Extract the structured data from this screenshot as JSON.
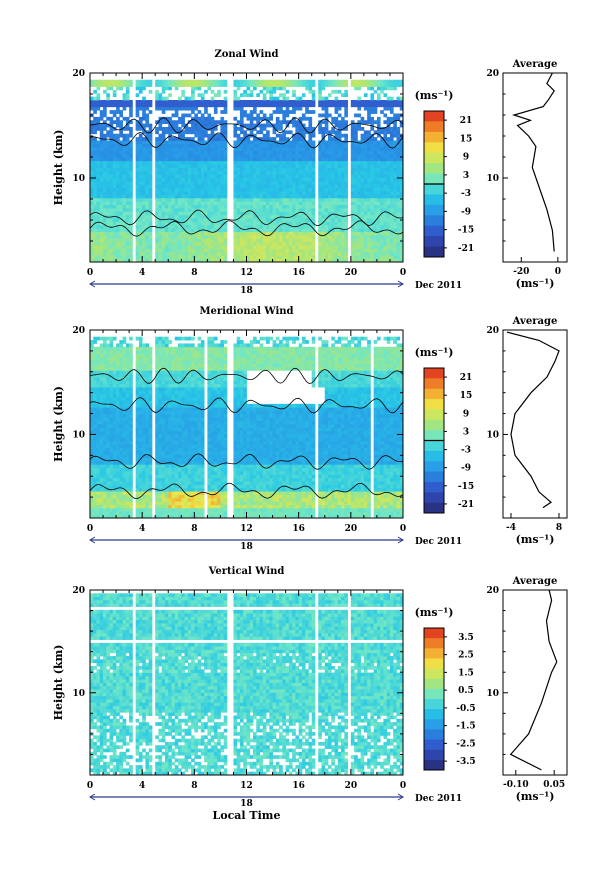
{
  "chart_data": [
    {
      "type": "heatmap",
      "title": "Zonal Wind",
      "ylabel": "Height (km)",
      "xlim": [
        0,
        24
      ],
      "ylim": [
        2,
        20
      ],
      "xticks": [
        "0",
        "4",
        "8",
        "12",
        "16",
        "20",
        "0"
      ],
      "yticks": [
        "10",
        "20"
      ],
      "date_label": "18",
      "date_suffix": "Dec 2011",
      "colorbar": {
        "unit": "(ms⁻¹)",
        "ticks": [
          "21",
          "15",
          "9",
          "3",
          "-3",
          "-9",
          "-15",
          "-21"
        ],
        "contour_level": 0
      },
      "average": {
        "title": "Average",
        "xlabel": "(ms⁻¹)",
        "xticks": [
          "-20",
          "0"
        ],
        "yticks": [
          "10",
          "20"
        ],
        "xlim": [
          -30,
          5
        ],
        "profile": [
          [
            -2,
            3
          ],
          [
            -3,
            5
          ],
          [
            -6,
            7
          ],
          [
            -10,
            9
          ],
          [
            -14,
            11
          ],
          [
            -13,
            12
          ],
          [
            -12,
            13
          ],
          [
            -16,
            14
          ],
          [
            -22,
            15
          ],
          [
            -15,
            15.5
          ],
          [
            -24,
            16
          ],
          [
            -8,
            16.8
          ],
          [
            -5,
            17.5
          ],
          [
            -2,
            18.3
          ],
          [
            -6,
            19
          ],
          [
            -3,
            20
          ]
        ]
      },
      "data_gaps": [
        [
          3.2,
          3.6
        ],
        [
          4.8,
          5.1
        ],
        [
          5.4,
          5.6
        ],
        [
          10.4,
          10.9
        ],
        [
          17.3,
          17.5
        ],
        [
          19.8,
          20.0
        ],
        [
          23.9,
          24
        ]
      ]
    },
    {
      "type": "heatmap",
      "title": "Meridional Wind",
      "ylabel": "Height (km)",
      "xlim": [
        0,
        24
      ],
      "ylim": [
        2,
        20
      ],
      "xticks": [
        "0",
        "4",
        "8",
        "12",
        "16",
        "20",
        "0"
      ],
      "yticks": [
        "10",
        "20"
      ],
      "date_label": "18",
      "date_suffix": "Dec 2011",
      "colorbar": {
        "unit": "(ms⁻¹)",
        "ticks": [
          "21",
          "15",
          "9",
          "3",
          "-3",
          "-9",
          "-15",
          "-21"
        ],
        "contour_level": 0
      },
      "average": {
        "title": "Average",
        "xlabel": "(ms⁻¹)",
        "xticks": [
          "-4",
          "8"
        ],
        "yticks": [
          "10",
          "20"
        ],
        "xlim": [
          -6,
          10
        ],
        "profile": [
          [
            4,
            3
          ],
          [
            6,
            3.5
          ],
          [
            3,
            4.5
          ],
          [
            1,
            6
          ],
          [
            -3,
            8
          ],
          [
            -4,
            10
          ],
          [
            -3,
            12
          ],
          [
            1,
            14
          ],
          [
            5,
            15.5
          ],
          [
            7,
            17
          ],
          [
            8,
            18
          ],
          [
            3,
            19
          ],
          [
            -5,
            19.8
          ]
        ]
      },
      "data_gaps": [
        [
          3.2,
          3.6
        ],
        [
          4.8,
          5.1
        ],
        [
          5.4,
          5.6
        ],
        [
          8.8,
          9.0
        ],
        [
          10.4,
          10.9
        ],
        [
          17.3,
          17.5
        ],
        [
          21.5,
          21.8
        ],
        [
          23.9,
          24
        ]
      ]
    },
    {
      "type": "heatmap",
      "title": "Vertical Wind",
      "xlabel": "Local Time",
      "ylabel": "Height (km)",
      "xlim": [
        0,
        24
      ],
      "ylim": [
        2,
        20
      ],
      "xticks": [
        "0",
        "4",
        "8",
        "12",
        "16",
        "20",
        "0"
      ],
      "yticks": [
        "10",
        "20"
      ],
      "date_label": "18",
      "date_suffix": "Dec 2011",
      "colorbar": {
        "unit": "(ms⁻¹)",
        "ticks": [
          "3.5",
          "2.5",
          "1.5",
          "0.5",
          "-0.5",
          "-1.5",
          "-2.5",
          "-3.5"
        ]
      },
      "average": {
        "title": "Average",
        "xlabel": "(ms⁻¹)",
        "xticks": [
          "-0.10",
          "0.05"
        ],
        "yticks": [
          "10",
          "20"
        ],
        "xlim": [
          -0.15,
          0.1
        ],
        "profile": [
          [
            0.0,
            2.5
          ],
          [
            -0.12,
            4
          ],
          [
            -0.05,
            6
          ],
          [
            0.0,
            9
          ],
          [
            0.04,
            12
          ],
          [
            0.06,
            13
          ],
          [
            0.03,
            15
          ],
          [
            0.02,
            17
          ],
          [
            0.04,
            19
          ],
          [
            0.03,
            20
          ]
        ]
      },
      "data_gaps": [
        [
          3.2,
          3.6
        ],
        [
          4.8,
          5.1
        ],
        [
          5.4,
          5.6
        ],
        [
          10.4,
          10.9
        ],
        [
          17.3,
          17.5
        ],
        [
          19.8,
          20.0
        ],
        [
          23.9,
          24
        ]
      ]
    }
  ]
}
